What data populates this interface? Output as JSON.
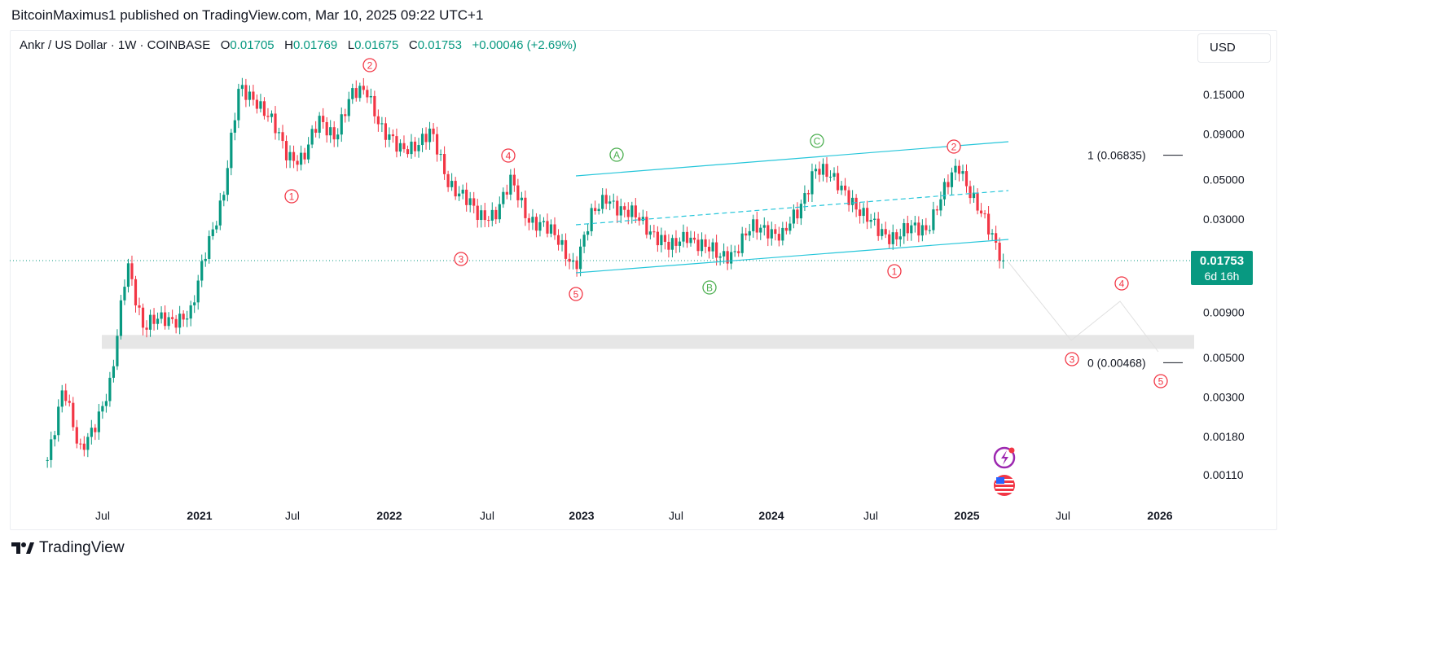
{
  "publisher_line": "BitcoinMaximus1 published on TradingView.com, Mar 10, 2025 09:22 UTC+1",
  "legend": {
    "symbol": "Ankr / US Dollar · 1W · COINBASE",
    "o_label": "O",
    "o": "0.01705",
    "h_label": "H",
    "h": "0.01769",
    "l_label": "L",
    "l": "0.01675",
    "c_label": "C",
    "c": "0.01753",
    "change": "+0.00046 (+2.69%)"
  },
  "currency_button": "USD",
  "last_price": {
    "value": "0.01753",
    "countdown": "6d 16h"
  },
  "footer_logo": "TradingView",
  "colors": {
    "up": "#089981",
    "down": "#f23645",
    "channel": "#26c6da",
    "wave_red": "#f23645",
    "wave_green": "#4caf50",
    "zone": "#e6e6e6"
  },
  "chart_data": {
    "type": "candlestick",
    "interval": "1W",
    "y_scale": "log",
    "y_ticks": [
      "0.15000",
      "0.09000",
      "0.05000",
      "0.03000",
      "0.00900",
      "0.00500",
      "0.00300",
      "0.00180",
      "0.00110"
    ],
    "x_ticks": [
      "Jul",
      "2021",
      "Jul",
      "2022",
      "Jul",
      "2023",
      "Jul",
      "2024",
      "Jul",
      "2025",
      "Jul",
      "2026"
    ],
    "approx_monthly_closes": [
      [
        "2020-03",
        0.00133
      ],
      [
        "2020-04",
        0.0036
      ],
      [
        "2020-05",
        0.0014
      ],
      [
        "2020-06",
        0.0022
      ],
      [
        "2020-07",
        0.0036
      ],
      [
        "2020-08",
        0.0175
      ],
      [
        "2020-09",
        0.0075
      ],
      [
        "2020-10",
        0.008
      ],
      [
        "2020-11",
        0.0084
      ],
      [
        "2020-12",
        0.0087
      ],
      [
        "2021-01",
        0.0216
      ],
      [
        "2021-02",
        0.041
      ],
      [
        "2021-03",
        0.16
      ],
      [
        "2021-04",
        0.145
      ],
      [
        "2021-05",
        0.105
      ],
      [
        "2021-06",
        0.069
      ],
      [
        "2021-07",
        0.066
      ],
      [
        "2021-08",
        0.105
      ],
      [
        "2021-09",
        0.09
      ],
      [
        "2021-10",
        0.145
      ],
      [
        "2021-11",
        0.16
      ],
      [
        "2021-12",
        0.093
      ],
      [
        "2022-01",
        0.072
      ],
      [
        "2022-02",
        0.08
      ],
      [
        "2022-03",
        0.09
      ],
      [
        "2022-04",
        0.05
      ],
      [
        "2022-05",
        0.041
      ],
      [
        "2022-06",
        0.03
      ],
      [
        "2022-07",
        0.033
      ],
      [
        "2022-08",
        0.048
      ],
      [
        "2022-09",
        0.031
      ],
      [
        "2022-10",
        0.028
      ],
      [
        "2022-11",
        0.022
      ],
      [
        "2022-12",
        0.0166
      ],
      [
        "2023-01",
        0.03
      ],
      [
        "2023-02",
        0.041
      ],
      [
        "2023-03",
        0.0328
      ],
      [
        "2023-04",
        0.03
      ],
      [
        "2023-05",
        0.025
      ],
      [
        "2023-06",
        0.02
      ],
      [
        "2023-07",
        0.025
      ],
      [
        "2023-08",
        0.021
      ],
      [
        "2023-09",
        0.0184
      ],
      [
        "2023-10",
        0.02
      ],
      [
        "2023-11",
        0.026
      ],
      [
        "2023-12",
        0.027
      ],
      [
        "2024-01",
        0.024
      ],
      [
        "2024-02",
        0.033
      ],
      [
        "2024-03",
        0.06
      ],
      [
        "2024-04",
        0.05
      ],
      [
        "2024-05",
        0.043
      ],
      [
        "2024-06",
        0.031
      ],
      [
        "2024-07",
        0.026
      ],
      [
        "2024-08",
        0.024
      ],
      [
        "2024-09",
        0.026
      ],
      [
        "2024-10",
        0.027
      ],
      [
        "2024-11",
        0.041
      ],
      [
        "2024-12",
        0.06
      ],
      [
        "2025-01",
        0.039
      ],
      [
        "2025-02",
        0.024
      ],
      [
        "2025-03",
        0.01753
      ]
    ],
    "fib_levels": [
      {
        "label": "1 (0.06835)",
        "value": 0.06835
      },
      {
        "label": "0 (0.00468)",
        "value": 0.00468
      }
    ],
    "support_zone": [
      0.0056,
      0.0067
    ],
    "wave_labels": [
      {
        "label": "1",
        "color": "red"
      },
      {
        "label": "2",
        "color": "red"
      },
      {
        "label": "3",
        "color": "red"
      },
      {
        "label": "4",
        "color": "red"
      },
      {
        "label": "5",
        "color": "red"
      },
      {
        "label": "A",
        "color": "green"
      },
      {
        "label": "B",
        "color": "green"
      },
      {
        "label": "C",
        "color": "green"
      },
      {
        "label": "2",
        "color": "red"
      },
      {
        "label": "1",
        "color": "red"
      },
      {
        "label": "4",
        "color": "red"
      },
      {
        "label": "3",
        "color": "red"
      },
      {
        "label": "5",
        "color": "red"
      }
    ]
  }
}
